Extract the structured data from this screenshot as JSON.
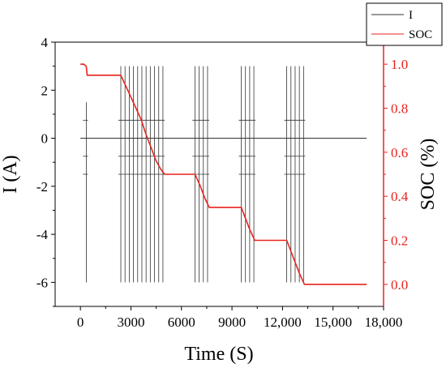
{
  "chart_data": {
    "type": "line",
    "title": "",
    "xlabel": "Time (S)",
    "ylabel_left": "I (A)",
    "ylabel_right": "SOC (%)",
    "xlim": [
      -1500,
      18000
    ],
    "ylim_left": [
      -7,
      4
    ],
    "ylim_right": [
      -0.1,
      1.1
    ],
    "x_ticks": [
      0,
      3000,
      6000,
      9000,
      12000,
      15000,
      18000
    ],
    "x_tick_labels": [
      "0",
      "3000",
      "6000",
      "9000",
      "12,000",
      "15,000",
      "18,000"
    ],
    "y_left_ticks": [
      4,
      2,
      0,
      -2,
      -4,
      -6
    ],
    "y_left_tick_labels": [
      "4",
      "2",
      "0",
      "-2",
      "-4",
      "-6"
    ],
    "y_right_ticks": [
      1.0,
      0.8,
      0.6,
      0.4,
      0.2,
      0.0
    ],
    "y_right_tick_labels": [
      "1.0",
      "0.8",
      "0.6",
      "0.4",
      "0.2",
      "0.0"
    ],
    "grid": false,
    "legend_position": "top-right",
    "series": [
      {
        "name": "I",
        "axis": "left",
        "color": "#333333",
        "baseline": 0,
        "pulses": [
          {
            "x": 350,
            "lo": -6,
            "hi": 1.5
          },
          {
            "x": 2400,
            "lo": -6,
            "hi": 3
          },
          {
            "x": 2650,
            "lo": -6,
            "hi": 3
          },
          {
            "x": 2900,
            "lo": -6,
            "hi": 3
          },
          {
            "x": 3150,
            "lo": -6,
            "hi": 3
          },
          {
            "x": 3400,
            "lo": -6,
            "hi": 3
          },
          {
            "x": 3650,
            "lo": -6,
            "hi": 3
          },
          {
            "x": 3900,
            "lo": -6,
            "hi": 3
          },
          {
            "x": 4150,
            "lo": -6,
            "hi": 3
          },
          {
            "x": 4400,
            "lo": -6,
            "hi": 3
          },
          {
            "x": 4650,
            "lo": -6,
            "hi": 3
          },
          {
            "x": 4900,
            "lo": -6,
            "hi": 3
          },
          {
            "x": 6800,
            "lo": -6,
            "hi": 3
          },
          {
            "x": 7050,
            "lo": -6,
            "hi": 3
          },
          {
            "x": 7300,
            "lo": -6,
            "hi": 3
          },
          {
            "x": 7550,
            "lo": -6,
            "hi": 3
          },
          {
            "x": 9550,
            "lo": -6,
            "hi": 3
          },
          {
            "x": 9800,
            "lo": -6,
            "hi": 3
          },
          {
            "x": 10050,
            "lo": -6,
            "hi": 3
          },
          {
            "x": 10300,
            "lo": -6,
            "hi": 3
          },
          {
            "x": 12250,
            "lo": -6,
            "hi": 3
          },
          {
            "x": 12500,
            "lo": -6,
            "hi": 3
          },
          {
            "x": 12750,
            "lo": -6,
            "hi": 3
          },
          {
            "x": 13000,
            "lo": -6,
            "hi": 3
          },
          {
            "x": 13250,
            "lo": -6,
            "hi": 3
          }
        ],
        "bands": [
          {
            "x0": 150,
            "x1": 450
          },
          {
            "x0": 2250,
            "x1": 5000
          },
          {
            "x0": 6650,
            "x1": 7650
          },
          {
            "x0": 9400,
            "x1": 10400
          },
          {
            "x0": 12100,
            "x1": 13350
          }
        ],
        "band_levels": [
          0.75,
          -0.75,
          -1.5
        ],
        "x_end": 17000
      },
      {
        "name": "SOC",
        "axis": "right",
        "color": "#e8231f",
        "x": [
          0,
          200,
          350,
          400,
          2400,
          2700,
          3000,
          3300,
          3600,
          3900,
          4200,
          4500,
          4800,
          5000,
          6800,
          7100,
          7400,
          7650,
          9550,
          9800,
          10050,
          10350,
          12250,
          12500,
          12750,
          13000,
          13300,
          17000
        ],
        "y": [
          1.0,
          1.0,
          0.99,
          0.95,
          0.95,
          0.9,
          0.85,
          0.8,
          0.75,
          0.68,
          0.62,
          0.56,
          0.52,
          0.5,
          0.5,
          0.45,
          0.39,
          0.35,
          0.35,
          0.3,
          0.25,
          0.2,
          0.2,
          0.15,
          0.1,
          0.05,
          0.0,
          0.0
        ]
      }
    ]
  }
}
